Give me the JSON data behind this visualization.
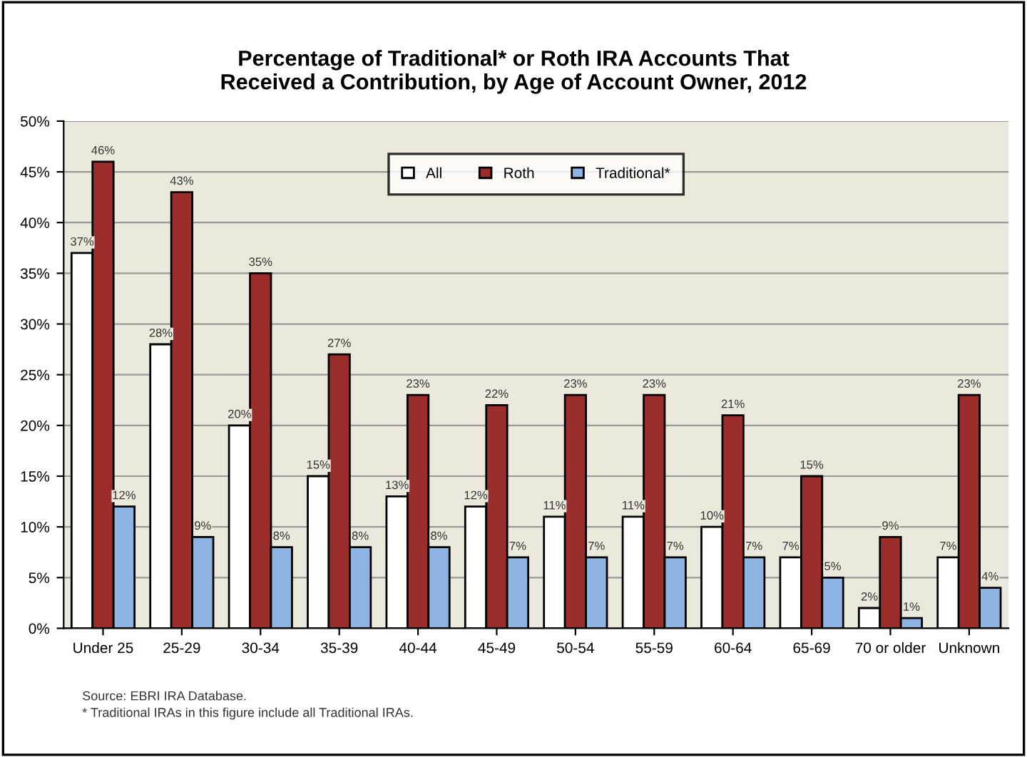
{
  "chart_data": {
    "type": "bar",
    "title": "Percentage of Traditional* or Roth IRA Accounts That\nReceived a Contribution, by Age of Account Owner, 2012",
    "categories": [
      "Under 25",
      "25-29",
      "30-34",
      "35-39",
      "40-44",
      "45-49",
      "50-54",
      "55-59",
      "60-64",
      "65-69",
      "70 or older",
      "Unknown"
    ],
    "series": [
      {
        "name": "All",
        "color": "#ffffff",
        "values": [
          37,
          28,
          20,
          15,
          13,
          12,
          11,
          11,
          10,
          7,
          2,
          7
        ],
        "value_labels": [
          "37%",
          "28%",
          "20%",
          "15%",
          "13%",
          "12%",
          "11%",
          "11%",
          "10%",
          "7%",
          "2%",
          "7%"
        ]
      },
      {
        "name": "Roth",
        "color": "#9b2d2d",
        "values": [
          46,
          43,
          35,
          27,
          23,
          22,
          23,
          23,
          21,
          15,
          9,
          23
        ],
        "value_labels": [
          "46%",
          "43%",
          "35%",
          "27%",
          "23%",
          "22%",
          "23%",
          "23%",
          "21%",
          "15%",
          "9%",
          "23%"
        ]
      },
      {
        "name": "Traditional*",
        "color": "#8db4e2",
        "values": [
          12,
          9,
          8,
          8,
          8,
          7,
          7,
          7,
          7,
          5,
          1,
          4
        ],
        "value_labels": [
          "12%",
          "9%",
          "8%",
          "8%",
          "8%",
          "7%",
          "7%",
          "7%",
          "7%",
          "5%",
          "1%",
          "4%"
        ]
      }
    ],
    "ylim": [
      0,
      50
    ],
    "yticks": [
      {
        "value": 0,
        "label": "0%"
      },
      {
        "value": 5,
        "label": "5%"
      },
      {
        "value": 10,
        "label": "10%"
      },
      {
        "value": 15,
        "label": "15%"
      },
      {
        "value": 20,
        "label": "20%"
      },
      {
        "value": 25,
        "label": "25%"
      },
      {
        "value": 30,
        "label": "30%"
      },
      {
        "value": 35,
        "label": "35%"
      },
      {
        "value": 40,
        "label": "40%"
      },
      {
        "value": 45,
        "label": "45%"
      },
      {
        "value": 50,
        "label": "50%"
      }
    ],
    "grid": "y",
    "legend": "top",
    "annotations": [
      "Source: EBRI IRA Database.",
      "* Traditional IRAs in this figure include all Traditional IRAs."
    ]
  }
}
